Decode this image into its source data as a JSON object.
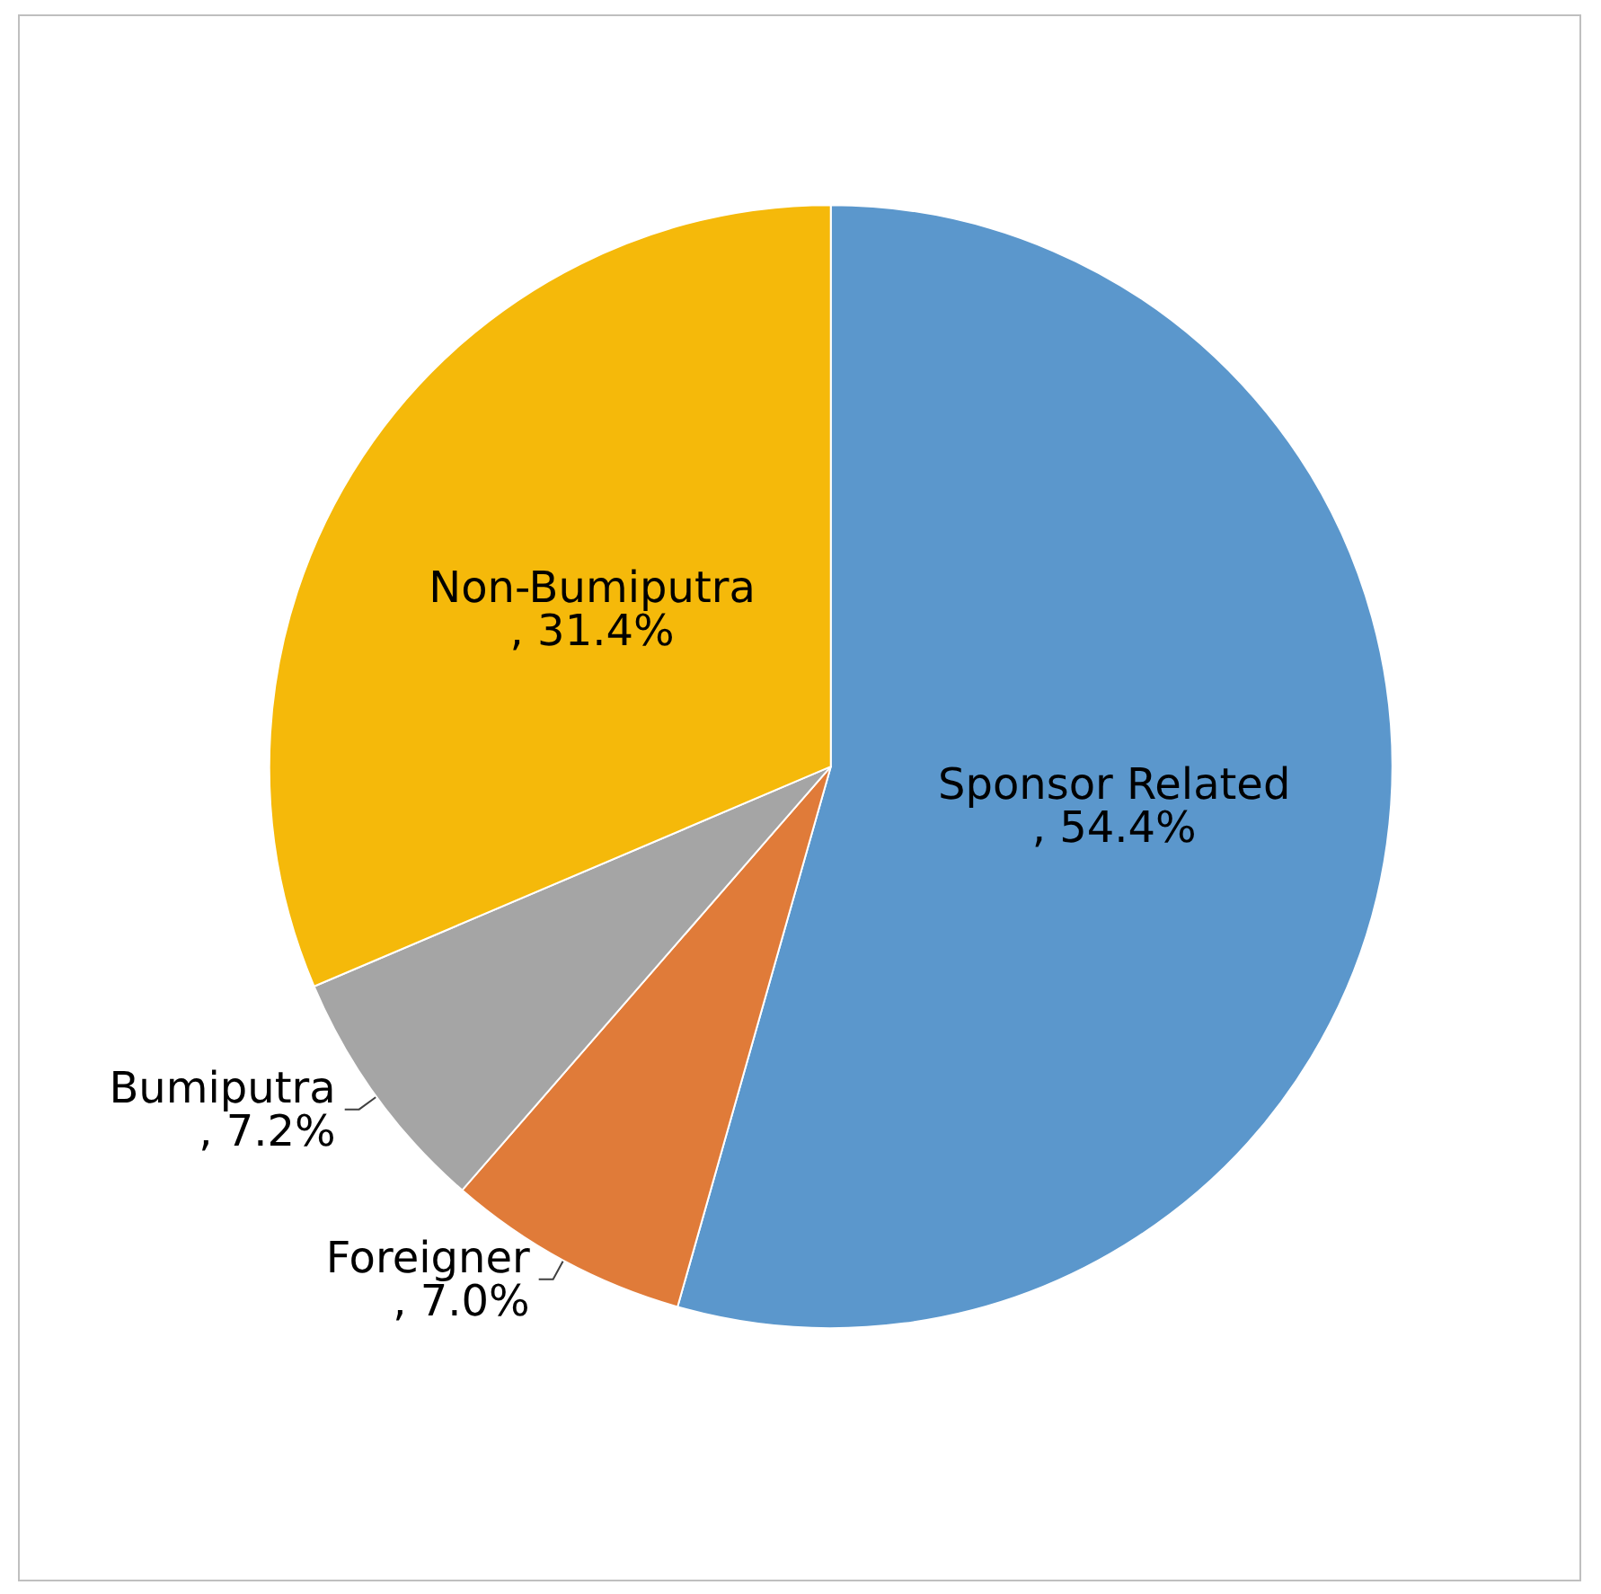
{
  "chart_data": {
    "type": "pie",
    "categories": [
      "Sponsor Related",
      "Foreigner",
      "Bumiputra",
      "Non-Bumiputra"
    ],
    "values": [
      54.4,
      7.0,
      7.2,
      31.4
    ],
    "value_labels": [
      ", 54.4%",
      ", 7.0%",
      ", 7.2%",
      ", 31.4%"
    ],
    "colors": [
      "#5b97cc",
      "#e07b39",
      "#a5a5a5",
      "#f5b90a"
    ],
    "legend": false
  }
}
